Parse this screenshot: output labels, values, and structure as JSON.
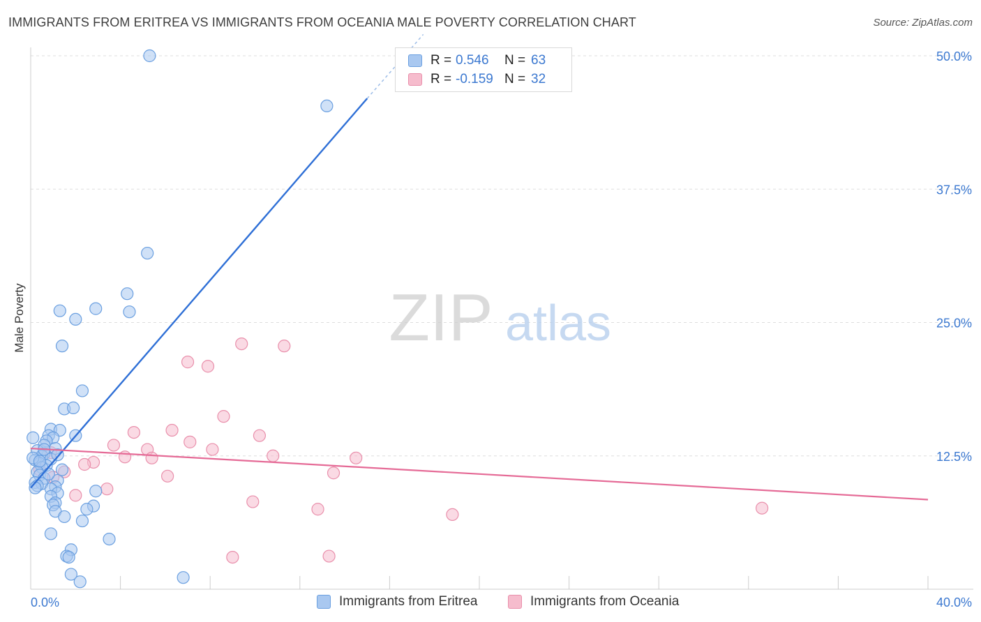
{
  "title": "IMMIGRANTS FROM ERITREA VS IMMIGRANTS FROM OCEANIA MALE POVERTY CORRELATION CHART",
  "source": "Source: ZipAtlas.com",
  "watermark": {
    "zip": "ZIP",
    "atlas": "atlas"
  },
  "colors": {
    "blue_fill": "#a9c8f0",
    "blue_stroke": "#6a9fe0",
    "blue_line": "#2e6fd6",
    "pink_fill": "#f6bccd",
    "pink_stroke": "#e98fab",
    "pink_line": "#e56a96",
    "axis_label": "#3b78d0",
    "grid": "#dddddd"
  },
  "legend_top": [
    {
      "r_label": "R =",
      "r_value": "0.546",
      "n_label": "N =",
      "n_value": "63"
    },
    {
      "r_label": "R =",
      "r_value": "-0.159",
      "n_label": "N =",
      "n_value": "32"
    }
  ],
  "chart_data": {
    "type": "scatter",
    "title": "IMMIGRANTS FROM ERITREA VS IMMIGRANTS FROM OCEANIA MALE POVERTY CORRELATION CHART",
    "xlabel": "",
    "ylabel": "Male Poverty",
    "xlim": [
      0,
      40
    ],
    "ylim": [
      0,
      50
    ],
    "x_tick_labels": [
      "0.0%",
      "40.0%"
    ],
    "y_ticks": [
      12.5,
      25,
      37.5,
      50
    ],
    "y_tick_labels": [
      "12.5%",
      "25.0%",
      "37.5%",
      "50.0%"
    ],
    "grid": true,
    "legend_position": "bottom",
    "series": [
      {
        "name": "Immigrants from Eritrea",
        "color": "#a9c8f0",
        "trend": {
          "x": [
            0.0,
            15.0
          ],
          "y": [
            9.5,
            46.0
          ],
          "dashed_extension_to": [
            17.5,
            52.0
          ]
        },
        "points": [
          [
            5.3,
            50.0
          ],
          [
            13.2,
            45.3
          ],
          [
            5.2,
            31.5
          ],
          [
            4.3,
            27.7
          ],
          [
            2.9,
            26.3
          ],
          [
            1.3,
            26.1
          ],
          [
            4.4,
            26.0
          ],
          [
            2.0,
            25.3
          ],
          [
            1.4,
            22.8
          ],
          [
            2.3,
            18.6
          ],
          [
            1.5,
            16.9
          ],
          [
            1.9,
            17.0
          ],
          [
            0.1,
            14.2
          ],
          [
            0.9,
            15.0
          ],
          [
            1.3,
            14.9
          ],
          [
            0.8,
            14.4
          ],
          [
            1.0,
            14.2
          ],
          [
            2.0,
            14.4
          ],
          [
            0.7,
            13.9
          ],
          [
            0.6,
            13.5
          ],
          [
            1.1,
            13.2
          ],
          [
            0.3,
            13.0
          ],
          [
            0.6,
            12.7
          ],
          [
            0.5,
            12.5
          ],
          [
            0.9,
            12.2
          ],
          [
            0.2,
            12.1
          ],
          [
            0.4,
            11.8
          ],
          [
            0.7,
            11.6
          ],
          [
            0.5,
            11.4
          ],
          [
            0.3,
            11.0
          ],
          [
            0.4,
            10.7
          ],
          [
            0.6,
            10.4
          ],
          [
            1.2,
            10.2
          ],
          [
            0.2,
            10.0
          ],
          [
            0.5,
            9.9
          ],
          [
            0.3,
            9.7
          ],
          [
            1.1,
            9.6
          ],
          [
            0.9,
            9.4
          ],
          [
            2.9,
            9.2
          ],
          [
            1.2,
            9.0
          ],
          [
            0.9,
            8.7
          ],
          [
            1.1,
            8.1
          ],
          [
            1.0,
            7.9
          ],
          [
            2.8,
            7.8
          ],
          [
            2.5,
            7.5
          ],
          [
            1.1,
            7.3
          ],
          [
            1.5,
            6.8
          ],
          [
            2.3,
            6.4
          ],
          [
            0.9,
            5.2
          ],
          [
            3.5,
            4.7
          ],
          [
            1.8,
            3.7
          ],
          [
            1.6,
            3.1
          ],
          [
            1.7,
            3.0
          ],
          [
            1.8,
            1.4
          ],
          [
            2.2,
            0.7
          ],
          [
            6.8,
            1.1
          ],
          [
            0.1,
            12.3
          ],
          [
            0.4,
            12.0
          ],
          [
            1.2,
            12.6
          ],
          [
            0.2,
            9.5
          ],
          [
            0.8,
            10.8
          ],
          [
            1.4,
            11.2
          ],
          [
            0.6,
            13.1
          ]
        ]
      },
      {
        "name": "Immigrants from Oceania",
        "color": "#f6bccd",
        "trend": {
          "x": [
            0.0,
            40.0
          ],
          "y": [
            13.2,
            8.4
          ]
        },
        "points": [
          [
            9.4,
            23.0
          ],
          [
            11.3,
            22.8
          ],
          [
            7.0,
            21.3
          ],
          [
            7.9,
            20.9
          ],
          [
            8.6,
            16.2
          ],
          [
            4.6,
            14.7
          ],
          [
            6.3,
            14.9
          ],
          [
            10.2,
            14.4
          ],
          [
            7.1,
            13.8
          ],
          [
            3.7,
            13.5
          ],
          [
            8.1,
            13.1
          ],
          [
            5.2,
            13.1
          ],
          [
            4.2,
            12.4
          ],
          [
            10.8,
            12.5
          ],
          [
            14.5,
            12.3
          ],
          [
            5.4,
            12.3
          ],
          [
            2.8,
            11.9
          ],
          [
            2.4,
            11.7
          ],
          [
            6.1,
            10.6
          ],
          [
            1.5,
            11.0
          ],
          [
            13.5,
            10.9
          ],
          [
            1.0,
            10.5
          ],
          [
            3.4,
            9.4
          ],
          [
            2.0,
            8.8
          ],
          [
            9.9,
            8.2
          ],
          [
            12.8,
            7.5
          ],
          [
            18.8,
            7.0
          ],
          [
            32.6,
            7.6
          ],
          [
            9.0,
            3.0
          ],
          [
            13.3,
            3.1
          ],
          [
            0.4,
            11.2
          ],
          [
            0.9,
            12.8
          ]
        ]
      }
    ]
  }
}
